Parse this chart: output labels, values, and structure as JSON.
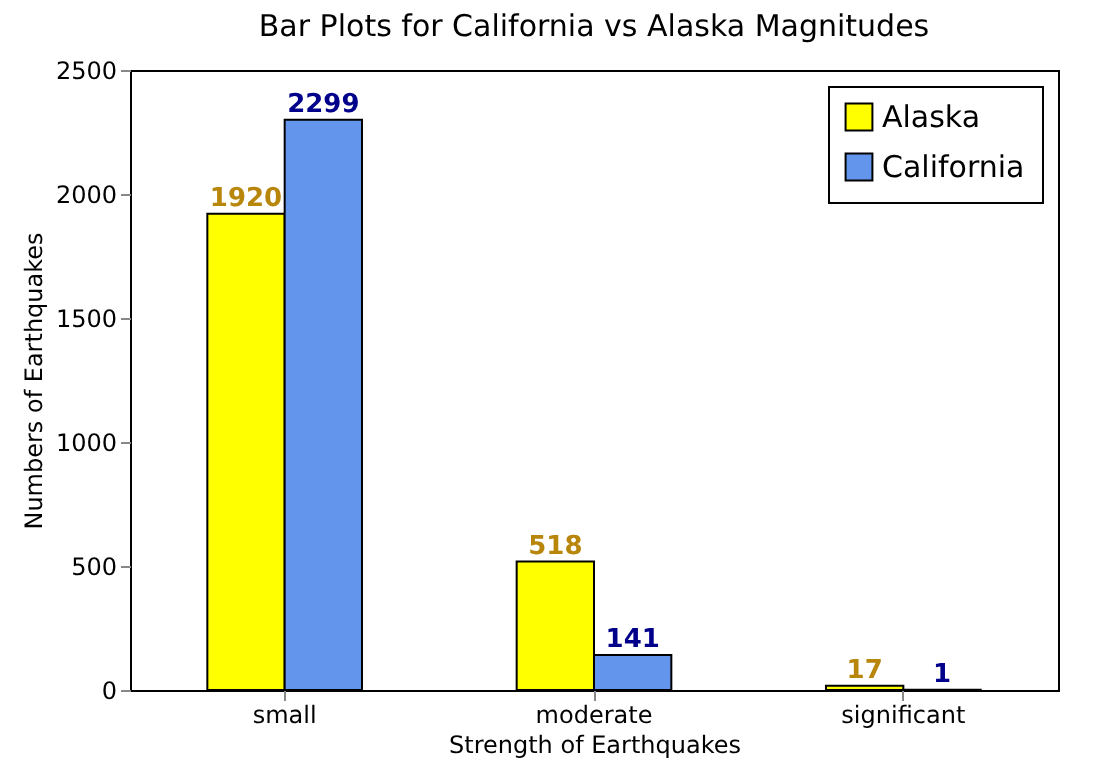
{
  "chart_data": {
    "type": "bar",
    "title": "Bar Plots for California vs Alaska Magnitudes",
    "xlabel": "Strength of Earthquakes",
    "ylabel": "Numbers of Earthquakes",
    "categories": [
      "small",
      "moderate",
      "significant"
    ],
    "series": [
      {
        "name": "Alaska",
        "color": "#ffff00",
        "values": [
          1920,
          518,
          17
        ]
      },
      {
        "name": "California",
        "color": "#6495ed",
        "values": [
          2299,
          141,
          1
        ]
      }
    ],
    "ylim": [
      0,
      2500
    ],
    "yticks": [
      0,
      500,
      1000,
      1500,
      2000,
      2500
    ],
    "grid": false,
    "legend": "top right",
    "data_labels": true
  }
}
